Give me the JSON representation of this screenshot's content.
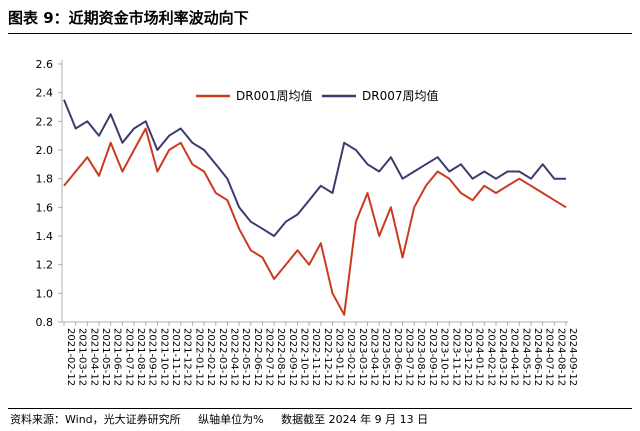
{
  "figure": {
    "title": "图表 9：近期资金市场利率波动向下",
    "footer_source": "资料来源：Wind，光大证券研究所",
    "footer_unit": "纵轴单位为%",
    "footer_date": "数据截至 2024 年 9 月 13 日"
  },
  "colors": {
    "dr001": "#cc3a1e",
    "dr007": "#3b3c6e",
    "axis": "#b0b0b0",
    "text": "#000000"
  },
  "chart_data": {
    "type": "line",
    "title": "",
    "xlabel": "",
    "ylabel": "",
    "ylim": [
      0.8,
      2.6
    ],
    "yticks": [
      0.8,
      1.0,
      1.2,
      1.4,
      1.6,
      1.8,
      2.0,
      2.2,
      2.4,
      2.6
    ],
    "ytick_labels": [
      "0.8",
      "1.0",
      "1.2",
      "1.4",
      "1.6",
      "1.8",
      "2.0",
      "2.2",
      "2.4",
      "2.6"
    ],
    "grid": false,
    "legend": "top-center",
    "x_tick_labels": [
      "2021-02-12",
      "2021-03-12",
      "2021-04-12",
      "2021-05-12",
      "2021-06-12",
      "2021-07-12",
      "2021-08-12",
      "2021-09-12",
      "2021-10-12",
      "2021-11-12",
      "2021-12-12",
      "2022-01-12",
      "2022-02-12",
      "2022-03-12",
      "2022-04-12",
      "2022-05-12",
      "2022-06-12",
      "2022-07-12",
      "2022-08-12",
      "2022-09-12",
      "2022-10-12",
      "2022-11-12",
      "2022-12-12",
      "2023-01-12",
      "2023-02-12",
      "2023-03-12",
      "2023-04-12",
      "2023-05-12",
      "2023-06-12",
      "2023-07-12",
      "2023-08-12",
      "2023-09-12",
      "2023-10-12",
      "2023-11-12",
      "2023-12-12",
      "2024-01-12",
      "2024-02-12",
      "2024-03-12",
      "2024-04-12",
      "2024-05-12",
      "2024-06-12",
      "2024-07-12",
      "2024-08-12",
      "2024-09-12"
    ],
    "x": [
      "2021-02-12",
      "2021-03-12",
      "2021-04-12",
      "2021-05-12",
      "2021-06-12",
      "2021-07-12",
      "2021-08-12",
      "2021-09-12",
      "2021-10-12",
      "2021-11-12",
      "2021-12-12",
      "2022-01-12",
      "2022-02-12",
      "2022-03-12",
      "2022-04-12",
      "2022-05-12",
      "2022-06-12",
      "2022-07-12",
      "2022-08-12",
      "2022-09-12",
      "2022-10-12",
      "2022-11-12",
      "2022-12-12",
      "2023-01-12",
      "2023-02-12",
      "2023-03-12",
      "2023-04-12",
      "2023-05-12",
      "2023-06-12",
      "2023-07-12",
      "2023-08-12",
      "2023-09-12",
      "2023-10-12",
      "2023-11-12",
      "2023-12-12",
      "2024-01-12",
      "2024-02-12",
      "2024-03-12",
      "2024-04-12",
      "2024-05-12",
      "2024-06-12",
      "2024-07-12",
      "2024-08-12",
      "2024-09-12"
    ],
    "series": [
      {
        "name": "DR001周均值",
        "values": [
          1.75,
          1.85,
          1.95,
          1.82,
          2.05,
          1.85,
          2.0,
          2.15,
          1.85,
          2.0,
          2.05,
          1.9,
          1.85,
          1.7,
          1.65,
          1.45,
          1.3,
          1.25,
          1.1,
          1.2,
          1.3,
          1.2,
          1.35,
          1.0,
          0.85,
          1.5,
          1.7,
          1.4,
          1.6,
          1.25,
          1.6,
          1.75,
          1.85,
          1.8,
          1.7,
          1.65,
          1.75,
          1.7,
          1.75,
          1.8,
          1.75,
          1.7,
          1.65,
          1.6
        ]
      },
      {
        "name": "DR007周均值",
        "values": [
          2.35,
          2.15,
          2.2,
          2.1,
          2.25,
          2.05,
          2.15,
          2.2,
          2.0,
          2.1,
          2.15,
          2.05,
          2.0,
          1.9,
          1.8,
          1.6,
          1.5,
          1.45,
          1.4,
          1.5,
          1.55,
          1.65,
          1.75,
          1.7,
          2.05,
          2.0,
          1.9,
          1.85,
          1.95,
          1.8,
          1.85,
          1.9,
          1.95,
          1.85,
          1.9,
          1.8,
          1.85,
          1.8,
          1.85,
          1.85,
          1.8,
          1.9,
          1.8,
          1.8
        ]
      }
    ]
  }
}
